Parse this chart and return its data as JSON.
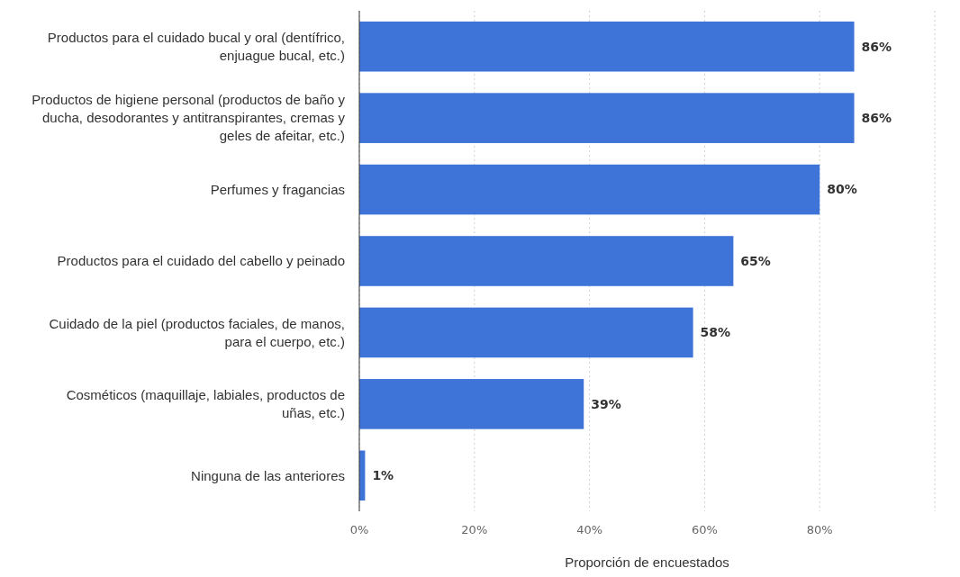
{
  "chart_data": {
    "type": "bar",
    "orientation": "horizontal",
    "xlabel": "Proporción de encuestados",
    "categories": [
      "Productos para el cuidado bucal y oral (dentífrico, enjuague bucal, etc.)",
      "Productos de higiene personal (productos de baño y ducha, desodorantes y antitranspirantes, cremas y geles de afeitar, etc.)",
      "Perfumes y fragancias",
      "Productos para el cuidado del cabello y peinado",
      "Cuidado de la piel (productos faciales, de manos, para el cuerpo, etc.)",
      "Cosméticos (maquillaje, labiales, productos de uñas, etc.)",
      "Ninguna de las anteriores"
    ],
    "values": [
      86,
      86,
      80,
      65,
      58,
      39,
      1
    ],
    "value_labels": [
      "86%",
      "86%",
      "80%",
      "65%",
      "58%",
      "39%",
      "1%"
    ],
    "color": "#3e74d8",
    "xlim": [
      0,
      100
    ],
    "xticks": [
      {
        "value": 0,
        "label": "0%"
      },
      {
        "value": 20,
        "label": "20%"
      },
      {
        "value": 40,
        "label": "40%"
      },
      {
        "value": 60,
        "label": "60%"
      },
      {
        "value": 80,
        "label": "80%"
      },
      {
        "value": 100,
        "label": null
      }
    ],
    "grid": "x"
  }
}
